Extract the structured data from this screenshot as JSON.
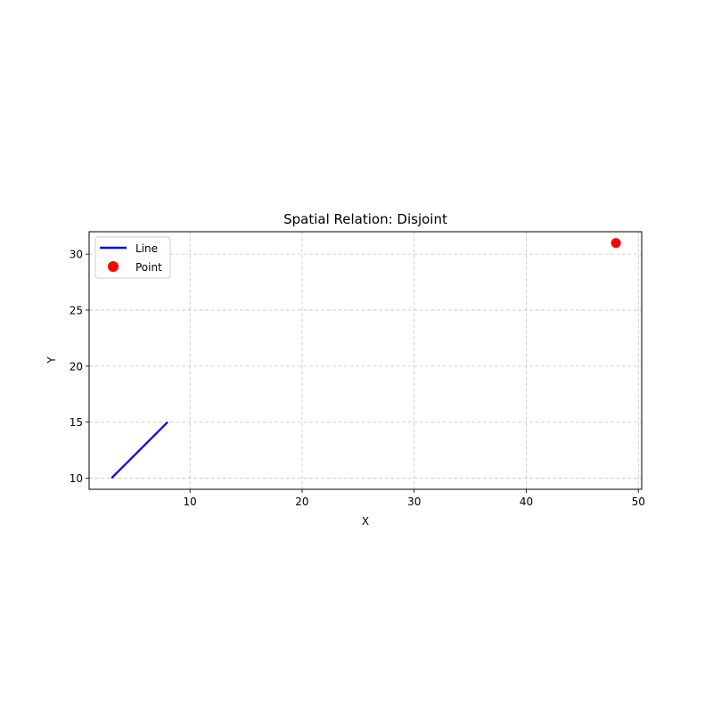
{
  "chart_data": {
    "type": "line",
    "title": "Spatial Relation: Disjoint",
    "xlabel": "X",
    "ylabel": "Y",
    "xlim": [
      1,
      50.3
    ],
    "ylim": [
      9,
      32
    ],
    "xticks": [
      10,
      20,
      30,
      40,
      50
    ],
    "yticks": [
      10,
      15,
      20,
      25,
      30
    ],
    "grid": true,
    "legend_position": "top-left",
    "series": [
      {
        "name": "Line",
        "type": "line",
        "color": "#0000ff",
        "x": [
          3,
          8
        ],
        "y": [
          10,
          15
        ]
      },
      {
        "name": "Point",
        "type": "scatter",
        "color": "#ff0000",
        "x": [
          48
        ],
        "y": [
          31
        ]
      }
    ]
  }
}
